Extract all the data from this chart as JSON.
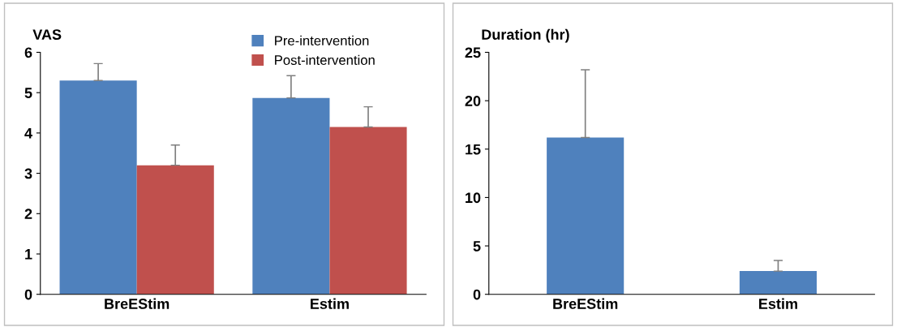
{
  "chart_data": [
    {
      "type": "bar",
      "ylabel": "VAS",
      "categories": [
        "BreEStim",
        "Estim"
      ],
      "ylim": [
        0,
        6
      ],
      "yticks": [
        0,
        1,
        2,
        3,
        4,
        5,
        6
      ],
      "grid": false,
      "legend": "top right",
      "series": [
        {
          "name": "Pre-intervention",
          "color": "#4f81bd",
          "values": [
            5.3,
            4.87
          ],
          "errors": [
            [
              5.3,
              5.72
            ],
            [
              4.87,
              5.42
            ]
          ]
        },
        {
          "name": "Post-intervention",
          "color": "#c0504d",
          "values": [
            3.2,
            4.15
          ],
          "errors": [
            [
              3.2,
              3.7
            ],
            [
              4.15,
              4.65
            ]
          ]
        }
      ]
    },
    {
      "type": "bar",
      "ylabel": "Duration (hr)",
      "categories": [
        "BreEStim",
        "Estim"
      ],
      "ylim": [
        0,
        25
      ],
      "yticks": [
        0,
        5,
        10,
        15,
        20,
        25
      ],
      "grid": false,
      "series": [
        {
          "color": "#4f81bd",
          "values": [
            16.2,
            2.4
          ],
          "errors": [
            [
              16.2,
              23.2
            ],
            [
              2.4,
              3.5
            ]
          ]
        }
      ]
    }
  ]
}
